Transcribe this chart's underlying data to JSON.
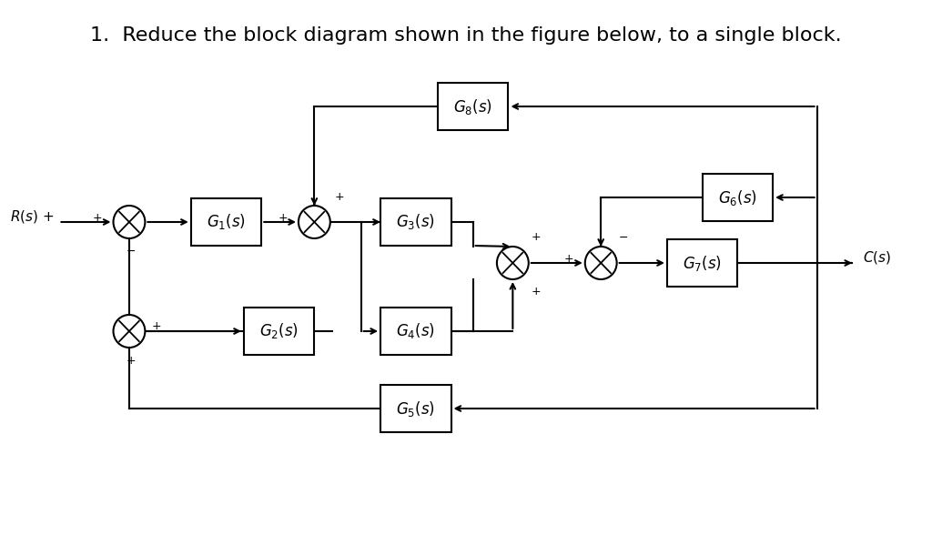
{
  "title": "1.  Reduce the block diagram shown in the figure below, to a single block.",
  "bg": "#ffffff",
  "lc": "#000000",
  "fontsize_title": 16,
  "fontsize_block": 12,
  "fontsize_sign": 9,
  "fontsize_label": 11
}
